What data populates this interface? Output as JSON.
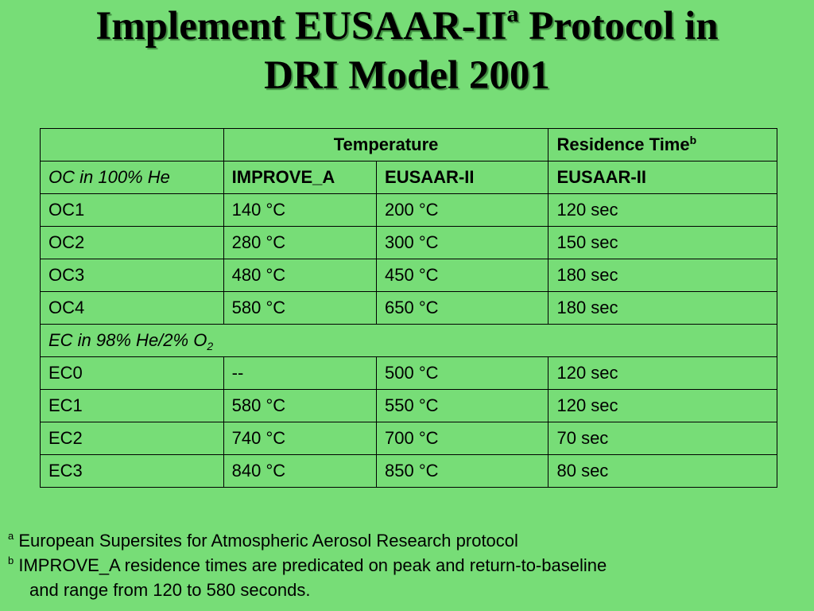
{
  "slide": {
    "title_part1": "Implement EUSAAR-II",
    "title_sup": "a",
    "title_part2": " Protocol in",
    "title_line2": "DRI Model 2001"
  },
  "table": {
    "header_temperature": "Temperature",
    "header_residence": "Residence Time",
    "header_residence_sup": "b",
    "oc_section_label": "OC in 100% He",
    "sub_improve": "IMPROVE_A",
    "sub_eusaar_temp": "EUSAAR-II",
    "sub_eusaar_time": "EUSAAR-II",
    "oc_rows": [
      {
        "step": "OC1",
        "improve": "140 °C",
        "eusaar": "200 °C",
        "time": "120 sec"
      },
      {
        "step": "OC2",
        "improve": "280 °C",
        "eusaar": "300 °C",
        "time": "150 sec"
      },
      {
        "step": "OC3",
        "improve": "480 °C",
        "eusaar": "450 °C",
        "time": "180 sec"
      },
      {
        "step": "OC4",
        "improve": "580 °C",
        "eusaar": "650 °C",
        "time": "180 sec"
      }
    ],
    "ec_section_label": "EC in 98% He/2% O",
    "ec_section_sub": "2",
    "ec_rows": [
      {
        "step": "EC0",
        "improve": "--",
        "eusaar": "500 °C",
        "time": "120 sec"
      },
      {
        "step": "EC1",
        "improve": "580 °C",
        "eusaar": "550 °C",
        "time": "120 sec"
      },
      {
        "step": "EC2",
        "improve": "740 °C",
        "eusaar": "700 °C",
        "time": "70 sec"
      },
      {
        "step": "EC3",
        "improve": "840 °C",
        "eusaar": "850 °C",
        "time": "80 sec"
      }
    ]
  },
  "footnotes": {
    "a_mark": "a",
    "a_text": "European Supersites for Atmospheric Aerosol Research protocol",
    "b_mark": "b",
    "b_text": "IMPROVE_A residence times are predicated on peak and return-to-baseline",
    "b_text_cont": "and range from 120 to 580 seconds."
  }
}
